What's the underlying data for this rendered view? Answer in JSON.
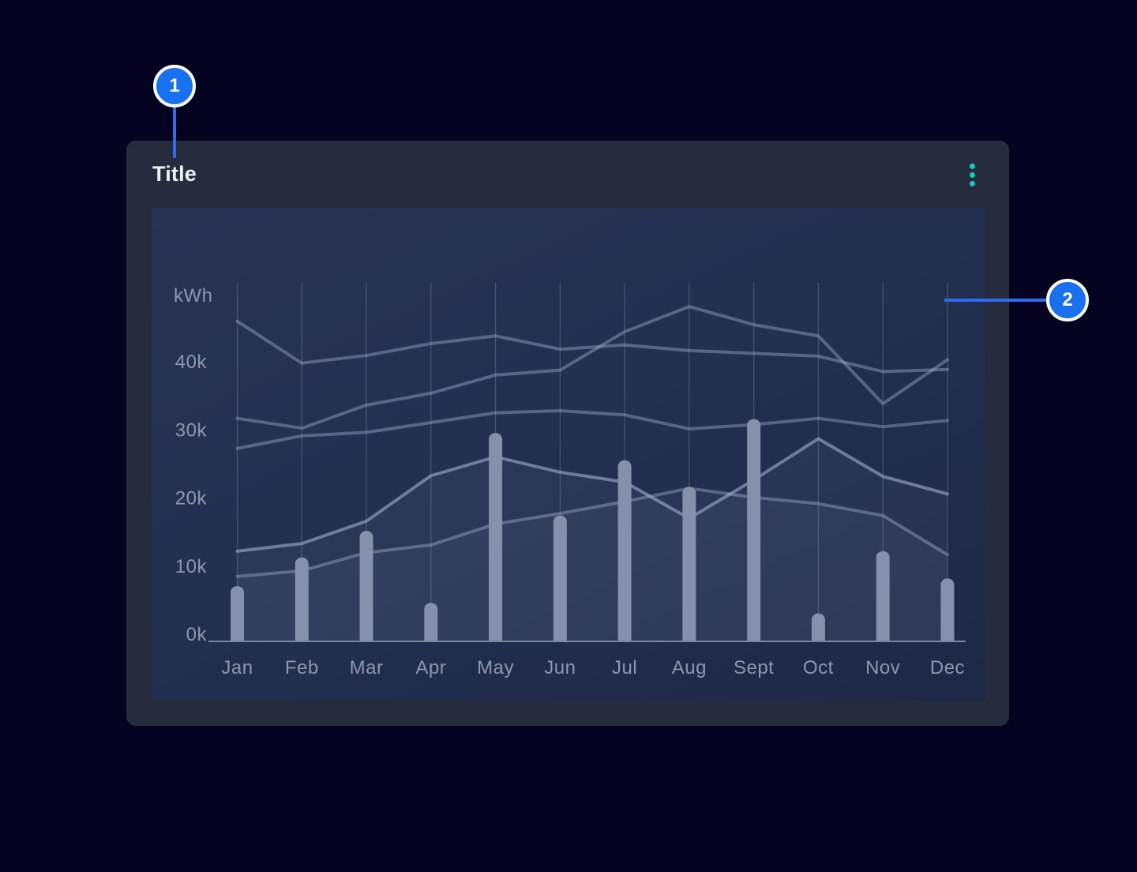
{
  "window": {
    "background": "#060322"
  },
  "card": {
    "title": "Title",
    "menu": {
      "icon": "kebab-vertical",
      "color": "#14c8c6"
    }
  },
  "callouts": [
    {
      "number": "1"
    },
    {
      "number": "2"
    }
  ],
  "accent": {
    "badge_fill": "#1971f0",
    "connector": "#2d6cee"
  },
  "chart_data": {
    "type": "bar+line",
    "y_axis_label": "kWh",
    "y_ticks": [
      "0k",
      "10k",
      "20k",
      "30k",
      "40k"
    ],
    "ylim": [
      0,
      50000
    ],
    "grid": "vertical-gridlines-only",
    "legend": "none",
    "categories": [
      "Jan",
      "Feb",
      "Mar",
      "Apr",
      "May",
      "Jun",
      "Jul",
      "Aug",
      "Sept",
      "Oct",
      "Nov",
      "Dec"
    ],
    "bar_series": {
      "name": "monthly-bars",
      "color": "#8590aa",
      "values": [
        7900,
        12000,
        15800,
        5500,
        29800,
        18000,
        25900,
        22100,
        31800,
        4000,
        12900,
        9000
      ]
    },
    "line_series": [
      {
        "name": "line-1",
        "area": false,
        "values": [
          45800,
          39800,
          40900,
          42600,
          43700,
          41800,
          42400,
          41600,
          41200,
          40800,
          38600,
          38900
        ]
      },
      {
        "name": "line-2",
        "area": false,
        "values": [
          31900,
          30500,
          33800,
          35500,
          38100,
          38800,
          44300,
          47900,
          45300,
          43700,
          34000,
          40300
        ]
      },
      {
        "name": "line-3",
        "area": false,
        "values": [
          27600,
          29400,
          29900,
          31300,
          32700,
          33000,
          32400,
          30400,
          31000,
          31900,
          30700,
          31600
        ]
      },
      {
        "name": "line-4",
        "area": true,
        "values": [
          12900,
          14000,
          17200,
          23700,
          26400,
          24200,
          22800,
          17600,
          23100,
          29000,
          23600,
          21100
        ]
      },
      {
        "name": "line-5",
        "area": true,
        "values": [
          9300,
          10100,
          12700,
          13800,
          16800,
          18300,
          20000,
          21900,
          20600,
          19700,
          18000,
          12400
        ]
      }
    ],
    "line_color": "rgba(176,190,218,0.38)",
    "line_highlight_color": "rgba(186,199,226,0.5)",
    "area_fill": "rgba(200,212,238,0.05)",
    "gridline_color": "rgba(205,215,235,0.22)",
    "axis_color": "#7a85a2",
    "label_color": "#8e97ae"
  }
}
